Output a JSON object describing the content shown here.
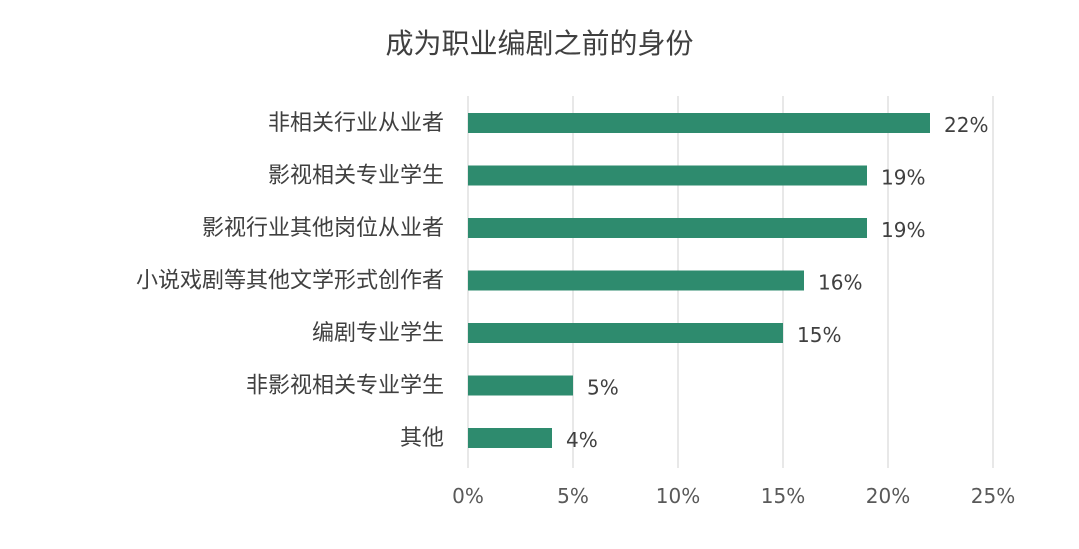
{
  "chart_data": {
    "type": "bar",
    "orientation": "horizontal",
    "title": "成为职业编剧之前的身份",
    "categories": [
      "非相关行业从业者",
      "影视相关专业学生",
      "影视行业其他岗位从业者",
      "小说戏剧等其他文学形式创作者",
      "编剧专业学生",
      "非影视相关专业学生",
      "其他"
    ],
    "values": [
      22,
      19,
      19,
      16,
      15,
      5,
      4
    ],
    "value_labels": [
      "22%",
      "19%",
      "19%",
      "16%",
      "15%",
      "5%",
      "4%"
    ],
    "xlim": [
      0,
      25
    ],
    "xticks": [
      0,
      5,
      10,
      15,
      20,
      25
    ],
    "xtick_labels": [
      "0%",
      "5%",
      "10%",
      "15%",
      "20%",
      "25%"
    ],
    "xlabel": "",
    "ylabel": "",
    "grid": "vertical",
    "legend": "none",
    "bar_color": "#2e8b6e"
  }
}
